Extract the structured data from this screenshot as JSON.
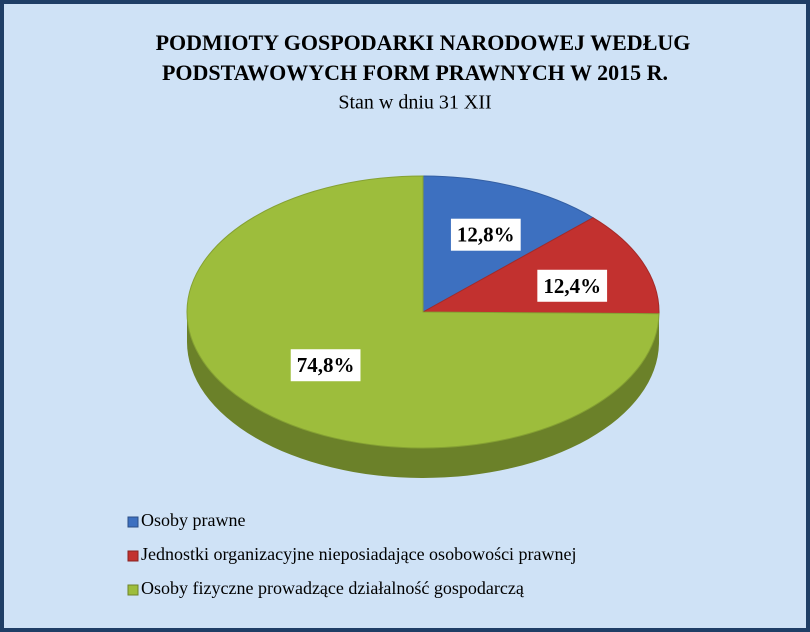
{
  "chart_data": {
    "type": "pie",
    "title": [
      "PODMIOTY GOSPODARKI NARODOWEJ  WEDŁUG",
      "PODSTAWOWYCH  FORM PRAWNYCH  W 2015 R."
    ],
    "subtitle": "Stan w dniu 31 XII",
    "categories": [
      "Osoby prawne",
      "Jednostki organizacyjne nieposiadające osobowości prawnej",
      "Osoby fizyczne prowadzące działalność gospodarczą"
    ],
    "values": [
      12.8,
      12.4,
      74.8
    ],
    "value_labels": [
      "12,8%",
      "12,4%",
      "74,8%"
    ],
    "colors": [
      "#3d70c0",
      "#c2312f",
      "#9dbd3c"
    ],
    "legend": "bottom-left"
  }
}
